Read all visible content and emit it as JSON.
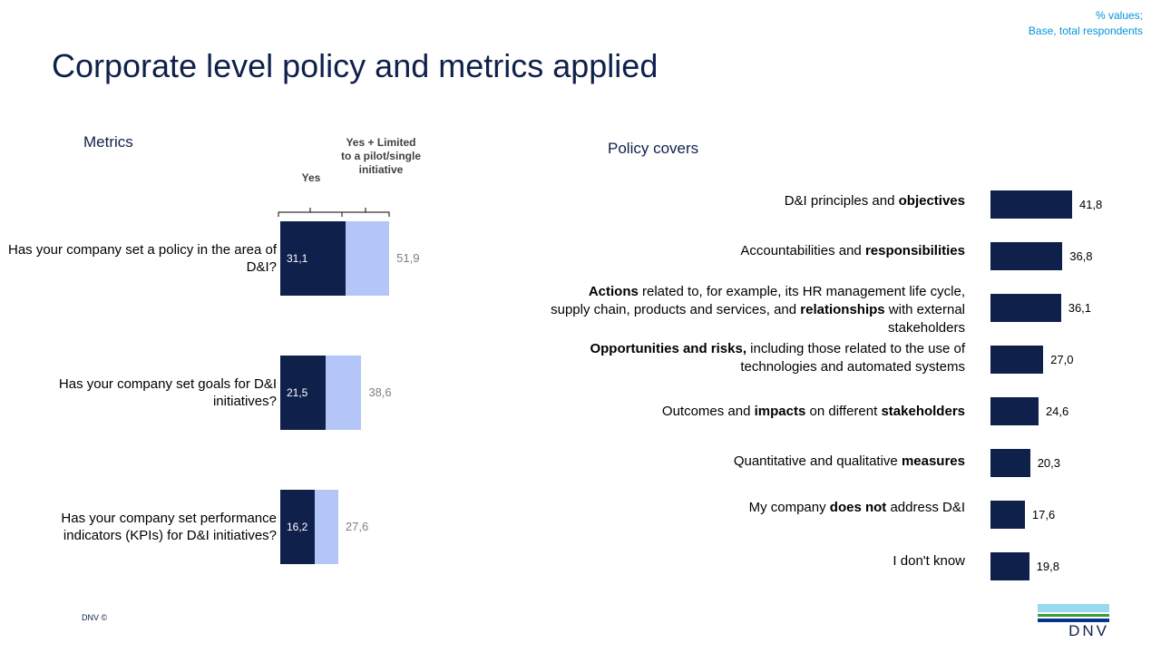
{
  "title": "Corporate level policy and metrics applied",
  "note": [
    "% values;",
    "Base, total respondents"
  ],
  "footer": "DNV ©",
  "logo_text": "DNV",
  "colors": {
    "dark": "#0f204b",
    "light": "#b4c6f7",
    "title": "#0f204b",
    "note": "#0095d9"
  },
  "chart_data": [
    {
      "type": "bar",
      "orientation": "horizontal",
      "title": "Metrics",
      "series": [
        {
          "name": "Yes",
          "values": [
            31.1,
            21.5,
            16.2
          ]
        },
        {
          "name": "Yes + Limited to a pilot/single initiative",
          "values": [
            51.9,
            38.6,
            27.6
          ]
        }
      ],
      "categories": [
        "Has your company set a policy in the area of D&I?",
        "Has your company set goals for D&I initiatives?",
        "Has your company set performance indicators (KPIs) for D&I initiatives?"
      ],
      "value_labels": [
        [
          "31,1",
          "21,5",
          "16,2"
        ],
        [
          "51,9",
          "38,6",
          "27,6"
        ]
      ]
    },
    {
      "type": "bar",
      "orientation": "horizontal",
      "title": "Policy covers",
      "categories": [
        [
          [
            "D&I principles and ",
            0
          ],
          [
            "objectives",
            1
          ]
        ],
        [
          [
            "Accountabilities and ",
            0
          ],
          [
            "responsibilities",
            1
          ]
        ],
        [
          [
            "Actions",
            1
          ],
          [
            " related to, for example, its HR management life cycle, supply chain, products and services, and ",
            0
          ],
          [
            "relationships",
            1
          ],
          [
            " with external stakeholders",
            0
          ]
        ],
        [
          [
            "Opportunities and risks,",
            1
          ],
          [
            " including those related to the use of technologies and automated systems",
            0
          ]
        ],
        [
          [
            "Outcomes and ",
            0
          ],
          [
            "impacts",
            1
          ],
          [
            " on different ",
            0
          ],
          [
            "stakeholders",
            1
          ]
        ],
        [
          [
            "Quantitative  and qualitative ",
            0
          ],
          [
            "measures",
            1
          ]
        ],
        [
          [
            "My company ",
            0
          ],
          [
            "does not",
            1
          ],
          [
            " address D&I",
            0
          ]
        ],
        [
          [
            "I don't know",
            0
          ]
        ]
      ],
      "values": [
        41.8,
        36.8,
        36.1,
        27.0,
        24.6,
        20.3,
        17.6,
        19.8
      ],
      "value_labels": [
        "41,8",
        "36,8",
        "36,1",
        "27,0",
        "24,6",
        "20,3",
        "17,6",
        "19,8"
      ]
    }
  ]
}
